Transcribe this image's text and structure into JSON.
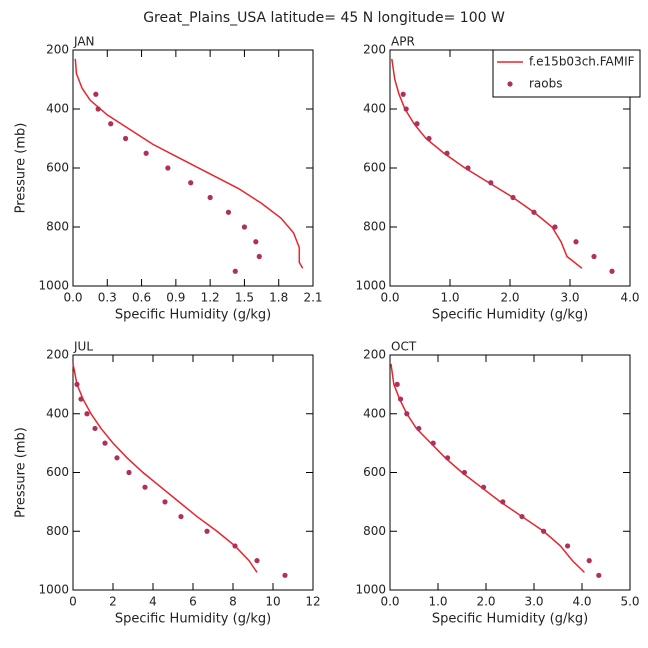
{
  "title": "Great_Plains_USA  latitude= 45 N longitude= 100 W",
  "chart_data": [
    {
      "type": "line",
      "title": "JAN",
      "xlabel": "Specific Humidity (g/kg)",
      "ylabel": "Pressure (mb)",
      "xlim": [
        0,
        2.1
      ],
      "xticks": [
        {
          "value": 0,
          "label": "0.0"
        },
        {
          "value": 0.3,
          "label": "0.3"
        },
        {
          "value": 0.6,
          "label": "0.6"
        },
        {
          "value": 0.9,
          "label": "0.9"
        },
        {
          "value": 1.2,
          "label": "1.2"
        },
        {
          "value": 1.5,
          "label": "1.5"
        },
        {
          "value": 1.8,
          "label": "1.8"
        },
        {
          "value": 2.1,
          "label": "2.1"
        }
      ],
      "ylim": [
        1000,
        200
      ],
      "yticks": [
        200,
        400,
        600,
        800,
        1000
      ],
      "series": [
        {
          "type": "line",
          "color": "#e8252b",
          "x": [
            0.02,
            0.03,
            0.08,
            0.15,
            0.3,
            0.5,
            0.7,
            0.95,
            1.2,
            1.45,
            1.65,
            1.82,
            1.93,
            1.98,
            1.98,
            2.01
          ],
          "y": [
            230,
            280,
            330,
            370,
            420,
            470,
            520,
            570,
            620,
            670,
            720,
            770,
            820,
            870,
            920,
            940
          ]
        },
        {
          "type": "scatter",
          "color": "#b0305a",
          "x": [
            0.2,
            0.22,
            0.33,
            0.46,
            0.64,
            0.83,
            1.03,
            1.2,
            1.36,
            1.5,
            1.6,
            1.63,
            1.42
          ],
          "y": [
            350,
            400,
            450,
            500,
            550,
            600,
            650,
            700,
            750,
            800,
            850,
            900,
            950
          ]
        }
      ]
    },
    {
      "type": "line",
      "title": "APR",
      "xlabel": "Specific Humidity (g/kg)",
      "legend": "upper right",
      "xlim": [
        0,
        4
      ],
      "xticks": [
        {
          "value": 0,
          "label": "0.0"
        },
        {
          "value": 1,
          "label": "1.0"
        },
        {
          "value": 2,
          "label": "2.0"
        },
        {
          "value": 3,
          "label": "3.0"
        },
        {
          "value": 4,
          "label": "4.0"
        }
      ],
      "ylim": [
        1000,
        200
      ],
      "yticks": [
        200,
        400,
        600,
        800,
        1000
      ],
      "series": [
        {
          "type": "line",
          "name": "f.e15b03ch.FAMIF",
          "color": "#e8252b",
          "x": [
            0.03,
            0.08,
            0.15,
            0.25,
            0.4,
            0.6,
            0.9,
            1.25,
            1.65,
            2.05,
            2.4,
            2.7,
            2.85,
            2.95,
            3.2
          ],
          "y": [
            230,
            300,
            350,
            400,
            450,
            500,
            550,
            600,
            650,
            700,
            750,
            800,
            850,
            900,
            940
          ]
        },
        {
          "type": "scatter",
          "name": "raobs",
          "color": "#b0305a",
          "x": [
            0.22,
            0.27,
            0.45,
            0.65,
            0.95,
            1.3,
            1.68,
            2.05,
            2.4,
            2.75,
            3.1,
            3.4,
            3.7
          ],
          "y": [
            350,
            400,
            450,
            500,
            550,
            600,
            650,
            700,
            750,
            800,
            850,
            900,
            950
          ]
        }
      ]
    },
    {
      "type": "line",
      "title": "JUL",
      "xlabel": "Specific Humidity (g/kg)",
      "ylabel": "Pressure (mb)",
      "xlim": [
        0,
        12
      ],
      "xticks": [
        0,
        2,
        4,
        6,
        8,
        10,
        12
      ],
      "ylim": [
        1000,
        200
      ],
      "yticks": [
        200,
        400,
        600,
        800,
        1000
      ],
      "series": [
        {
          "type": "line",
          "color": "#e8252b",
          "x": [
            0,
            0.2,
            0.5,
            0.9,
            1.4,
            2.0,
            2.7,
            3.5,
            4.4,
            5.3,
            6.2,
            7.2,
            8.1,
            8.8,
            9.2
          ],
          "y": [
            230,
            300,
            350,
            400,
            450,
            500,
            550,
            600,
            650,
            700,
            750,
            800,
            850,
            900,
            940
          ]
        },
        {
          "type": "scatter",
          "color": "#b0305a",
          "x": [
            0.2,
            0.4,
            0.7,
            1.1,
            1.6,
            2.2,
            2.8,
            3.6,
            4.6,
            5.4,
            6.7,
            8.1,
            9.2,
            10.6
          ],
          "y": [
            300,
            350,
            400,
            450,
            500,
            550,
            600,
            650,
            700,
            750,
            800,
            850,
            900,
            950
          ]
        }
      ]
    },
    {
      "type": "line",
      "title": "OCT",
      "xlabel": "Specific Humidity (g/kg)",
      "xlim": [
        0,
        5
      ],
      "xticks": [
        {
          "value": 0,
          "label": "0.0"
        },
        {
          "value": 1,
          "label": "1.0"
        },
        {
          "value": 2,
          "label": "2.0"
        },
        {
          "value": 3,
          "label": "3.0"
        },
        {
          "value": 4,
          "label": "4.0"
        },
        {
          "value": 5,
          "label": "5.0"
        }
      ],
      "ylim": [
        1000,
        200
      ],
      "yticks": [
        200,
        400,
        600,
        800,
        1000
      ],
      "series": [
        {
          "type": "line",
          "color": "#e8252b",
          "x": [
            0.02,
            0.08,
            0.2,
            0.35,
            0.55,
            0.85,
            1.15,
            1.5,
            1.9,
            2.3,
            2.75,
            3.2,
            3.55,
            3.8,
            4.05
          ],
          "y": [
            230,
            300,
            350,
            400,
            450,
            500,
            550,
            600,
            650,
            700,
            750,
            800,
            850,
            900,
            940
          ]
        },
        {
          "type": "scatter",
          "color": "#b0305a",
          "x": [
            0.15,
            0.22,
            0.35,
            0.6,
            0.9,
            1.2,
            1.55,
            1.95,
            2.35,
            2.75,
            3.2,
            3.7,
            4.15,
            4.35
          ],
          "y": [
            300,
            350,
            400,
            450,
            500,
            550,
            600,
            650,
            700,
            750,
            800,
            850,
            900,
            950
          ]
        }
      ]
    }
  ]
}
